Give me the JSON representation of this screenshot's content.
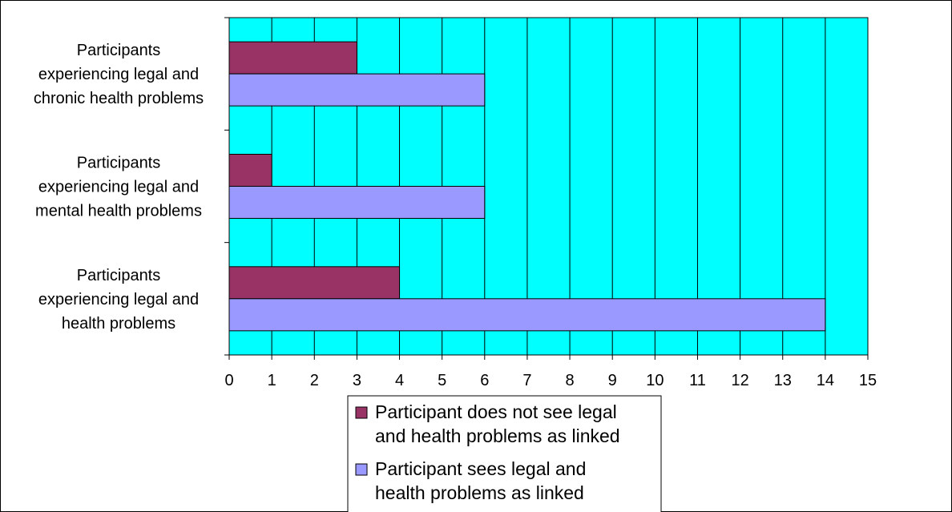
{
  "chart_data": {
    "type": "bar",
    "orientation": "horizontal",
    "categories": [
      [
        "Participants",
        "experiencing legal and",
        "chronic health problems"
      ],
      [
        "Participants",
        "experiencing legal and",
        "mental health problems"
      ],
      [
        "Participants",
        "experiencing legal and",
        "health problems"
      ]
    ],
    "series": [
      {
        "name": [
          "Participant does not see legal",
          "and health problems as linked"
        ],
        "color": "#993366",
        "values": [
          3,
          1,
          4
        ]
      },
      {
        "name": [
          "Participant sees legal and",
          "health problems as linked"
        ],
        "color": "#9999ff",
        "values": [
          6,
          6,
          14
        ]
      }
    ],
    "x_ticks": [
      "0",
      "1",
      "2",
      "3",
      "4",
      "5",
      "6",
      "7",
      "8",
      "9",
      "10",
      "11",
      "12",
      "13",
      "14",
      "15"
    ],
    "xlim": [
      0,
      15
    ],
    "plot_background": "#00ffff",
    "grid": true,
    "legend_position": "bottom"
  }
}
